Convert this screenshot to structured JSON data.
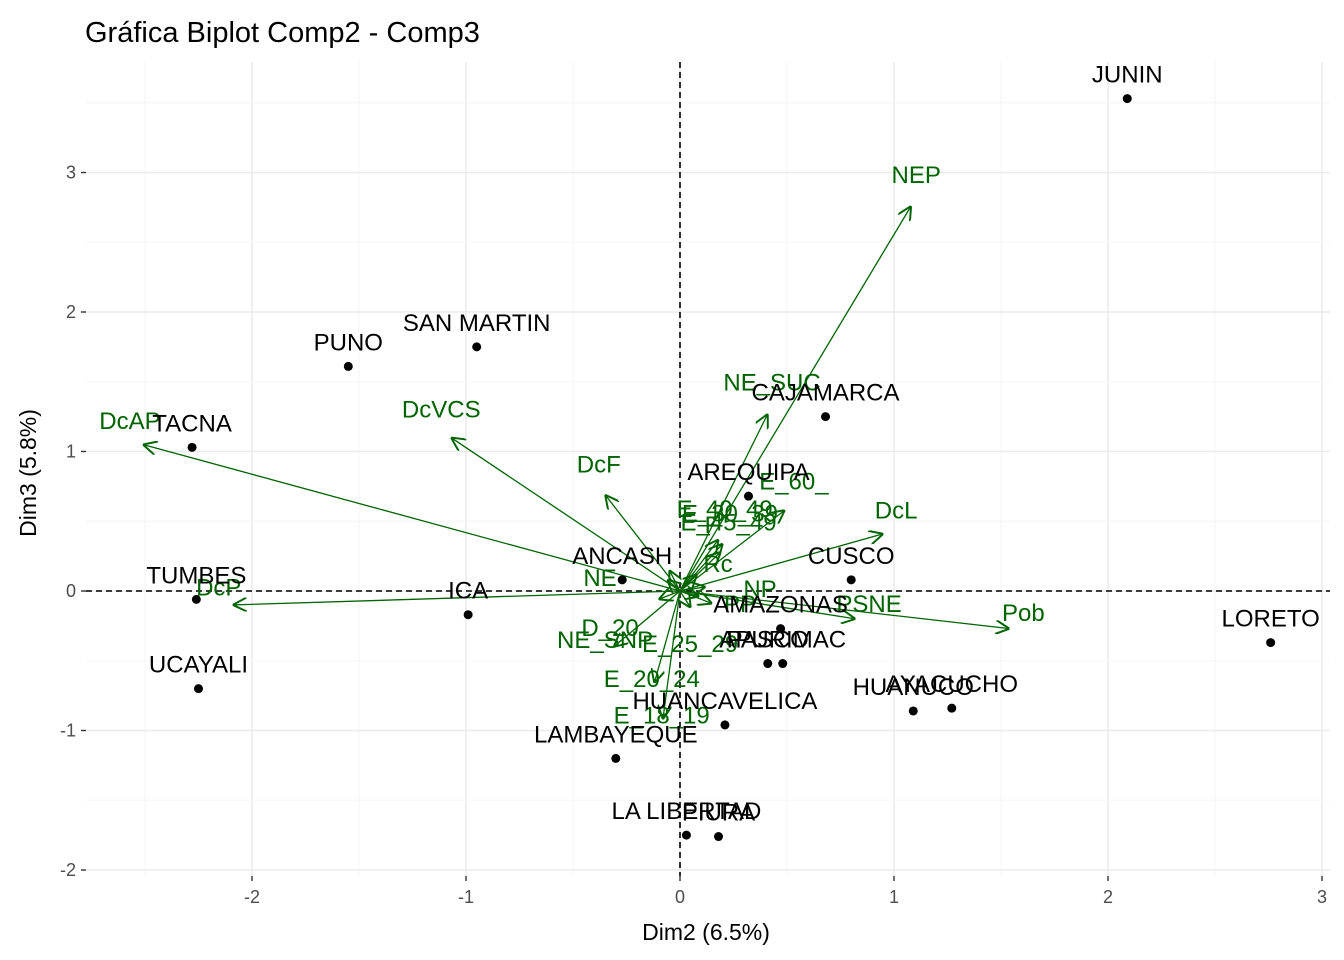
{
  "chart_data": {
    "type": "scatter",
    "title": "Gráfica Biplot Comp2 - Comp3",
    "xlabel": "Dim2 (6.5%)",
    "ylabel": "Dim3 (5.8%)",
    "xlim": [
      -2.78,
      3.0
    ],
    "ylim": [
      -2.0,
      3.78
    ],
    "x_ticks": [
      -2,
      -1,
      0,
      1,
      2,
      3
    ],
    "y_ticks": [
      -2,
      -1,
      0,
      1,
      2,
      3
    ],
    "grid": true,
    "reference_lines": {
      "x": 0,
      "y": 0,
      "style": "dashed"
    },
    "colors": {
      "points": "#000000",
      "vectors": "#006400",
      "grid_major": "#ebebeb",
      "grid_minor": "#f5f5f5",
      "tick_text": "#4d4d4d"
    },
    "points": [
      {
        "label": "JUNIN",
        "x": 2.09,
        "y": 3.53
      },
      {
        "label": "SAN MARTIN",
        "x": -0.95,
        "y": 1.75
      },
      {
        "label": "PUNO",
        "x": -1.55,
        "y": 1.61
      },
      {
        "label": "TACNA",
        "x": -2.28,
        "y": 1.03
      },
      {
        "label": "CAJAMARCA",
        "x": 0.68,
        "y": 1.25
      },
      {
        "label": "AREQUIPA",
        "x": 0.32,
        "y": 0.68
      },
      {
        "label": "ANCASH",
        "x": -0.27,
        "y": 0.08
      },
      {
        "label": "CUSCO",
        "x": 0.8,
        "y": 0.08
      },
      {
        "label": "TUMBES",
        "x": -2.26,
        "y": -0.06
      },
      {
        "label": "ICA",
        "x": -0.99,
        "y": -0.17
      },
      {
        "label": "LORETO",
        "x": 2.76,
        "y": -0.37
      },
      {
        "label": "AMAZONAS",
        "x": 0.47,
        "y": -0.27
      },
      {
        "label": "APURIMAC",
        "x": 0.48,
        "y": -0.52
      },
      {
        "label": "PASCO",
        "x": 0.41,
        "y": -0.52
      },
      {
        "label": "UCAYALI",
        "x": -2.25,
        "y": -0.7
      },
      {
        "label": "AYACUCHO",
        "x": 1.27,
        "y": -0.84
      },
      {
        "label": "HUANUCO",
        "x": 1.09,
        "y": -0.86
      },
      {
        "label": "HUANCAVELICA",
        "x": 0.21,
        "y": -0.96
      },
      {
        "label": "LAMBAYEQUE",
        "x": -0.3,
        "y": -1.2
      },
      {
        "label": "LA LIBERTAD",
        "x": 0.03,
        "y": -1.75
      },
      {
        "label": "PIURA",
        "x": 0.18,
        "y": -1.76
      }
    ],
    "vectors": [
      {
        "label": "NEP",
        "x": 1.08,
        "y": 2.76
      },
      {
        "label": "NE_SUC",
        "x": 0.41,
        "y": 1.27
      },
      {
        "label": "DcVCS",
        "x": -1.07,
        "y": 1.1
      },
      {
        "label": "DcAP",
        "x": -2.51,
        "y": 1.05
      },
      {
        "label": "DcF",
        "x": -0.35,
        "y": 0.69
      },
      {
        "label": "E_60_",
        "x": 0.49,
        "y": 0.58
      },
      {
        "label": "DcL",
        "x": 0.95,
        "y": 0.41
      },
      {
        "label": "E_40_49",
        "x": 0.18,
        "y": 0.37
      },
      {
        "label": "E_30_39",
        "x": 0.2,
        "y": 0.34
      },
      {
        "label": "E_45_49",
        "x": 0.19,
        "y": 0.28
      },
      {
        "label": "DcP",
        "x": -2.09,
        "y": -0.1
      },
      {
        "label": "Pob",
        "x": 1.54,
        "y": -0.27
      },
      {
        "label": "PSNE",
        "x": 0.82,
        "y": -0.2
      },
      {
        "label": "NE_SNP",
        "x": -0.31,
        "y": -0.4
      },
      {
        "label": "E_20_24",
        "x": -0.12,
        "y": -0.66
      },
      {
        "label": "E_18_19",
        "x": -0.08,
        "y": -0.92
      }
    ],
    "vector_labels_dense": [
      "F",
      "Rc",
      "NE",
      "NP",
      "PP",
      "D_20",
      "E_25_29"
    ]
  }
}
